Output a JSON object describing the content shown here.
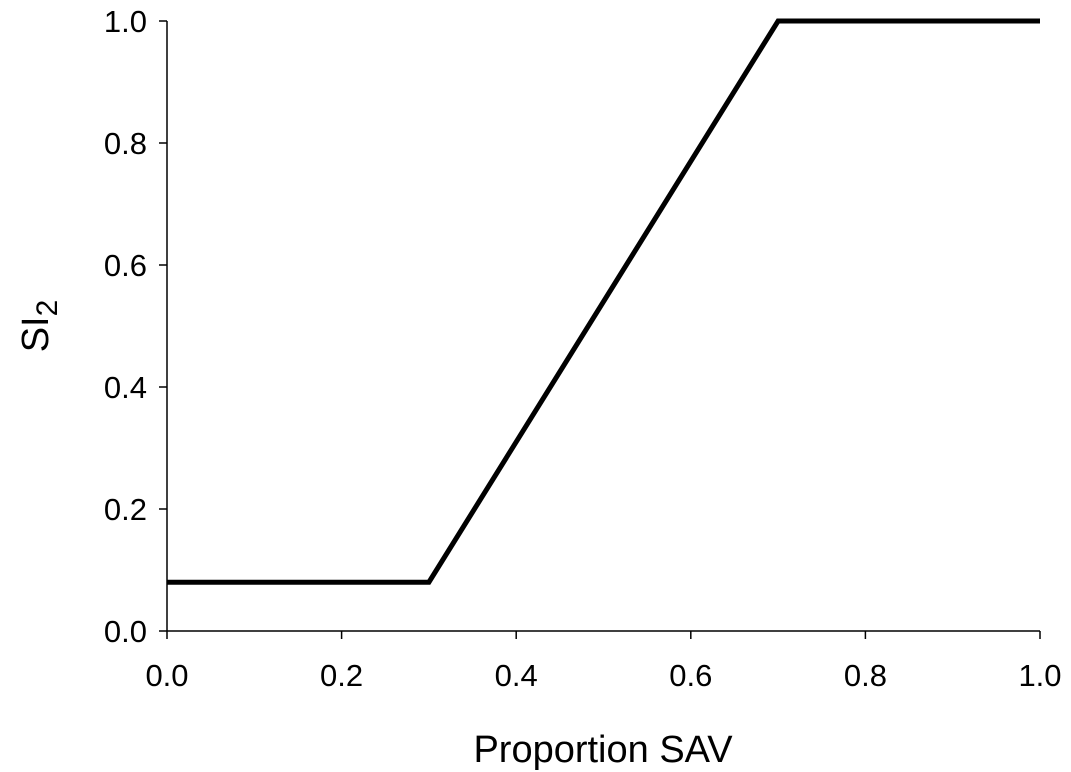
{
  "chart_data": {
    "type": "line",
    "title": "",
    "xlabel": "Proportion SAV",
    "ylabel": {
      "main": "SI",
      "subscript": "2"
    },
    "xlim": [
      0.0,
      1.0
    ],
    "ylim": [
      0.0,
      1.0
    ],
    "xticks": [
      "0.0",
      "0.2",
      "0.4",
      "0.6",
      "0.8",
      "1.0"
    ],
    "yticks": [
      "0.0",
      "0.2",
      "0.4",
      "0.6",
      "0.8",
      "1.0"
    ],
    "grid": false,
    "legend": "none",
    "series": [
      {
        "x": [
          0.0,
          0.3,
          0.7,
          1.0
        ],
        "y": [
          0.08,
          0.08,
          1.0,
          1.0
        ],
        "color": "#000000"
      }
    ]
  }
}
